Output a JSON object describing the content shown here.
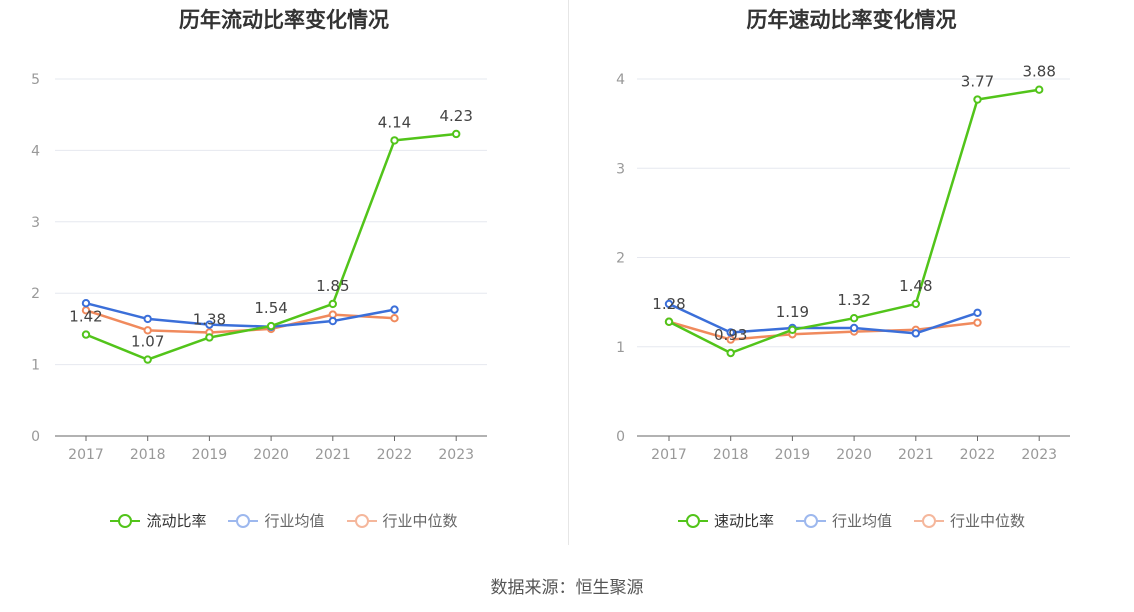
{
  "colors": {
    "primary": "#52c41a",
    "avg": "#3b6fd9",
    "median": "#f08a5d",
    "grid": "#e6e8ef",
    "axis": "#666666",
    "tick_text": "#999999"
  },
  "source": "数据来源：恒生聚源",
  "chart_data": [
    {
      "type": "line",
      "title": "历年流动比率变化情况",
      "x": [
        "2017",
        "2018",
        "2019",
        "2020",
        "2021",
        "2022",
        "2023"
      ],
      "ylim": [
        0,
        5
      ],
      "yticks": [
        "0",
        "1",
        "2",
        "3",
        "4",
        "5"
      ],
      "grid": true,
      "legend_position": "bottom",
      "series": [
        {
          "name": "流动比率",
          "color": "#52c41a",
          "values": [
            1.42,
            1.07,
            1.38,
            1.54,
            1.85,
            4.14,
            4.23
          ],
          "labels": [
            "1.42",
            "1.07",
            "1.38",
            "1.54",
            "1.85",
            "4.14",
            "4.23"
          ]
        },
        {
          "name": "行业均值",
          "color": "#3b6fd9",
          "values": [
            1.86,
            1.64,
            1.56,
            1.53,
            1.61,
            1.77,
            null
          ]
        },
        {
          "name": "行业中位数",
          "color": "#f08a5d",
          "values": [
            1.76,
            1.48,
            1.45,
            1.5,
            1.7,
            1.65,
            null
          ]
        }
      ]
    },
    {
      "type": "line",
      "title": "历年速动比率变化情况",
      "x": [
        "2017",
        "2018",
        "2019",
        "2020",
        "2021",
        "2022",
        "2023"
      ],
      "ylim": [
        0,
        4
      ],
      "yticks": [
        "0",
        "1",
        "2",
        "3",
        "4"
      ],
      "grid": true,
      "legend_position": "bottom",
      "series": [
        {
          "name": "速动比率",
          "color": "#52c41a",
          "values": [
            1.28,
            0.93,
            1.19,
            1.32,
            1.48,
            3.77,
            3.88
          ],
          "labels": [
            "1.28",
            "0.93",
            "1.19",
            "1.32",
            "1.48",
            "3.77",
            "3.88"
          ]
        },
        {
          "name": "行业均值",
          "color": "#3b6fd9",
          "values": [
            1.48,
            1.16,
            1.21,
            1.21,
            1.15,
            1.38,
            null
          ]
        },
        {
          "name": "行业中位数",
          "color": "#f08a5d",
          "values": [
            1.28,
            1.08,
            1.14,
            1.17,
            1.19,
            1.27,
            null
          ]
        }
      ]
    }
  ]
}
